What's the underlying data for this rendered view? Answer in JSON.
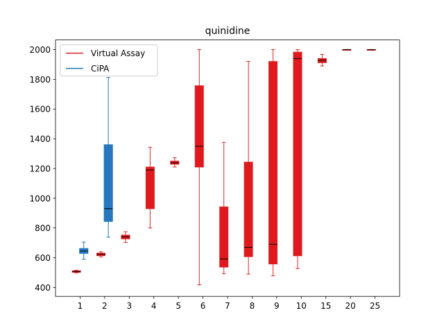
{
  "chart_data": {
    "type": "box",
    "title": "quinidine",
    "xlabel": "",
    "ylabel": "",
    "categories": [
      "1",
      "2",
      "3",
      "4",
      "5",
      "6",
      "7",
      "8",
      "9",
      "10",
      "15",
      "20",
      "25"
    ],
    "ylim": [
      340,
      2065
    ],
    "yticks": [
      400,
      600,
      800,
      1000,
      1200,
      1400,
      1600,
      1800,
      2000
    ],
    "grid": false,
    "legend": {
      "position": "top-left"
    },
    "series": [
      {
        "name": "Virtual Assay",
        "color": "#d62728",
        "fill": "#e0191f",
        "offset": -0.15,
        "boxes": [
          {
            "category": "1",
            "whislo": 498,
            "q1": 502,
            "med": 507,
            "q3": 512,
            "whishi": 516
          },
          {
            "category": "2",
            "whislo": 606,
            "q1": 614,
            "med": 623,
            "q3": 631,
            "whishi": 640
          },
          {
            "category": "3",
            "whislo": 703,
            "q1": 727,
            "med": 740,
            "q3": 752,
            "whishi": 775
          },
          {
            "category": "4",
            "whislo": 800,
            "q1": 930,
            "med": 1190,
            "q3": 1210,
            "whishi": 1343
          },
          {
            "category": "5",
            "whislo": 1210,
            "q1": 1229,
            "med": 1238,
            "q3": 1250,
            "whishi": 1272
          },
          {
            "category": "6",
            "whislo": 418,
            "q1": 1210,
            "med": 1350,
            "q3": 1757,
            "whishi": 2000
          },
          {
            "category": "7",
            "whislo": 492,
            "q1": 537,
            "med": 592,
            "q3": 942,
            "whishi": 1376
          },
          {
            "category": "8",
            "whislo": 490,
            "q1": 607,
            "med": 670,
            "q3": 1243,
            "whishi": 1921
          },
          {
            "category": "9",
            "whislo": 478,
            "q1": 558,
            "med": 690,
            "q3": 1920,
            "whishi": 2000
          },
          {
            "category": "10",
            "whislo": 527,
            "q1": 613,
            "med": 1940,
            "q3": 1983,
            "whishi": 2000
          },
          {
            "category": "15",
            "whislo": 1890,
            "q1": 1912,
            "med": 1928,
            "q3": 1940,
            "whishi": 1968
          },
          {
            "category": "20",
            "whislo": 1998,
            "q1": 1999,
            "med": 2000,
            "q3": 2000,
            "whishi": 2001
          },
          {
            "category": "25",
            "whislo": 1998,
            "q1": 1999,
            "med": 2000,
            "q3": 2000,
            "whishi": 2001
          }
        ]
      },
      {
        "name": "CiPA",
        "color": "#1f77b4",
        "fill": "#2878c0",
        "offset": 0.15,
        "boxes": [
          {
            "category": "1",
            "whislo": 590,
            "q1": 629,
            "med": 645,
            "q3": 662,
            "whishi": 705
          },
          {
            "category": "2",
            "whislo": 738,
            "q1": 844,
            "med": 930,
            "q3": 1360,
            "whishi": 1812
          }
        ]
      }
    ]
  }
}
